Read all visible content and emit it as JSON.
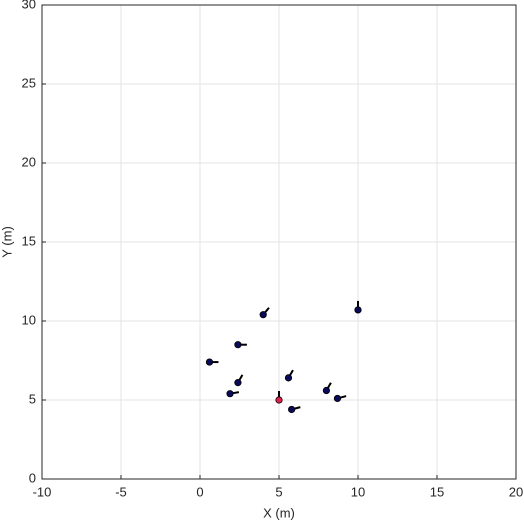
{
  "chart_data": {
    "type": "scatter",
    "xlabel": "X (m)",
    "ylabel": "Y (m)",
    "xlim": [
      -10,
      20
    ],
    "ylim": [
      0,
      30
    ],
    "xticks": [
      -10,
      -5,
      0,
      5,
      10,
      15,
      20
    ],
    "yticks": [
      0,
      5,
      10,
      15,
      20,
      25,
      30
    ],
    "grid": true,
    "series": [
      {
        "color": "#0a0a5a",
        "x": [
          4.0,
          10.0,
          2.4,
          0.6,
          5.6,
          2.4,
          8.0,
          1.9,
          8.7,
          5.8
        ],
        "y": [
          10.4,
          10.7,
          8.5,
          7.4,
          6.4,
          6.1,
          5.6,
          5.4,
          5.1,
          4.4
        ],
        "heading": [
          50,
          90,
          0,
          0,
          60,
          60,
          60,
          10,
          15,
          15
        ]
      },
      {
        "color": "#e0204a",
        "x": [
          5.0
        ],
        "y": [
          5.0
        ],
        "heading": [
          90
        ]
      }
    ]
  }
}
